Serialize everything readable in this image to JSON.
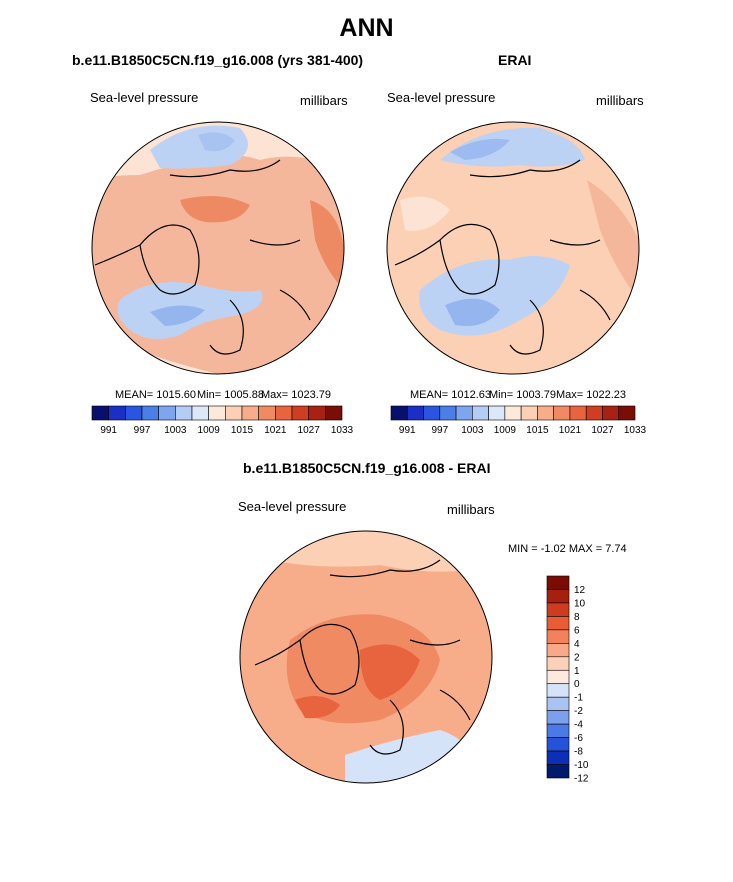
{
  "figure": {
    "title": "ANN",
    "colors": {
      "abs_scale": [
        "#08106e",
        "#1a2fc6",
        "#2a55e0",
        "#4a7fe8",
        "#7ea6ef",
        "#b4cdf4",
        "#dce8fa",
        "#fde9d9",
        "#fbd0b4",
        "#f7ad8a",
        "#f08a62",
        "#e8643f",
        "#cf3e22",
        "#a82112",
        "#7a0d05"
      ],
      "diff_scale": [
        "#001a6e",
        "#0c2fb8",
        "#2452d8",
        "#4b79e6",
        "#7ba0ee",
        "#a9c3f3",
        "#d5e3f8",
        "#fde9dd",
        "#fbd1b9",
        "#f8a988",
        "#f3825c",
        "#e85c36",
        "#cf3b1f",
        "#a6200e",
        "#7b0c04"
      ]
    }
  },
  "chart_data": [
    {
      "type": "heatmap",
      "projection": "north-polar-stereographic",
      "title": "b.e11.B1850C5CN.f19_g16.008 (yrs 381-400)",
      "variable": "Sea-level pressure",
      "units": "millibars",
      "stats": {
        "mean": "MEAN= 1015.60",
        "min": "Min= 1005.88",
        "max": "Max= 1023.79"
      },
      "colorbar": {
        "orientation": "horizontal",
        "levels": [
          991,
          994,
          997,
          1000,
          1003,
          1006,
          1009,
          1012,
          1015,
          1018,
          1021,
          1024,
          1027,
          1030,
          1033
        ],
        "tick_labels": [
          "991",
          "997",
          "1003",
          "1009",
          "1015",
          "1021",
          "1027",
          "1033"
        ]
      },
      "field": "model",
      "levels": [
        991,
        994,
        997,
        1000,
        1003,
        1006,
        1009,
        1012,
        1015,
        1018,
        1021,
        1024,
        1027,
        1030,
        1033
      ]
    },
    {
      "type": "heatmap",
      "projection": "north-polar-stereographic",
      "title": "ERAI",
      "variable": "Sea-level pressure",
      "units": "millibars",
      "stats": {
        "mean": "MEAN= 1012.63",
        "min": "Min= 1003.79",
        "max": "Max= 1022.23"
      },
      "colorbar": {
        "orientation": "horizontal",
        "levels": [
          991,
          994,
          997,
          1000,
          1003,
          1006,
          1009,
          1012,
          1015,
          1018,
          1021,
          1024,
          1027,
          1030,
          1033
        ],
        "tick_labels": [
          "991",
          "997",
          "1003",
          "1009",
          "1015",
          "1021",
          "1027",
          "1033"
        ]
      },
      "field": "obs",
      "levels": [
        991,
        994,
        997,
        1000,
        1003,
        1006,
        1009,
        1012,
        1015,
        1018,
        1021,
        1024,
        1027,
        1030,
        1033
      ]
    },
    {
      "type": "heatmap",
      "projection": "north-polar-stereographic",
      "title": "b.e11.B1850C5CN.f19_g16.008 - ERAI",
      "variable": "Sea-level pressure",
      "units": "millibars",
      "stats": {
        "minmax": "MIN =  -1.02 MAX =   7.74"
      },
      "colorbar": {
        "orientation": "vertical",
        "levels": [
          -12,
          -10,
          -8,
          -6,
          -4,
          -2,
          -1,
          0,
          1,
          2,
          4,
          6,
          8,
          10,
          12
        ],
        "tick_labels": [
          "12",
          "10",
          "8",
          "6",
          "4",
          "2",
          "1",
          "0",
          "-1",
          "-2",
          "-4",
          "-6",
          "-8",
          "-10",
          "-12"
        ]
      },
      "field": "diff",
      "levels": [
        -12,
        -10,
        -8,
        -6,
        -4,
        -2,
        -1,
        0,
        1,
        2,
        4,
        6,
        8,
        10,
        12
      ]
    }
  ]
}
